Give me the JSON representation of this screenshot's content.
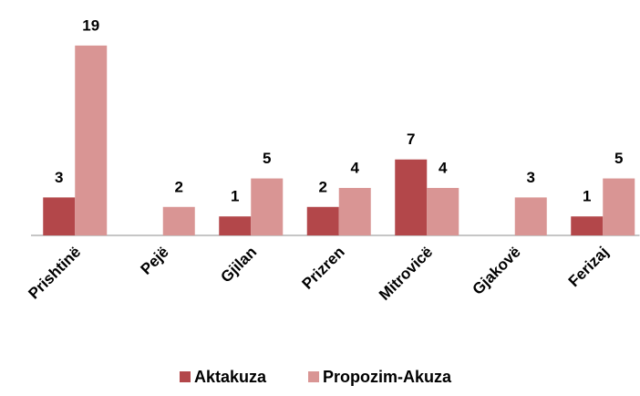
{
  "chart_data": {
    "type": "bar",
    "categories": [
      "Prishtinë",
      "Pejë",
      "Gjilan",
      "Prizren",
      "Mitrovicë",
      "Gjakovë",
      "Ferizaj"
    ],
    "series": [
      {
        "name": "Aktakuza",
        "color": "#b3474a",
        "values": [
          3,
          null,
          1,
          2,
          7,
          null,
          1
        ]
      },
      {
        "name": "Propozim-Akuza",
        "color": "#d99594",
        "values": [
          19,
          2,
          5,
          4,
          4,
          3,
          5
        ]
      }
    ],
    "ylim": [
      -1,
      20
    ],
    "grid": false,
    "legend": "bottom"
  }
}
